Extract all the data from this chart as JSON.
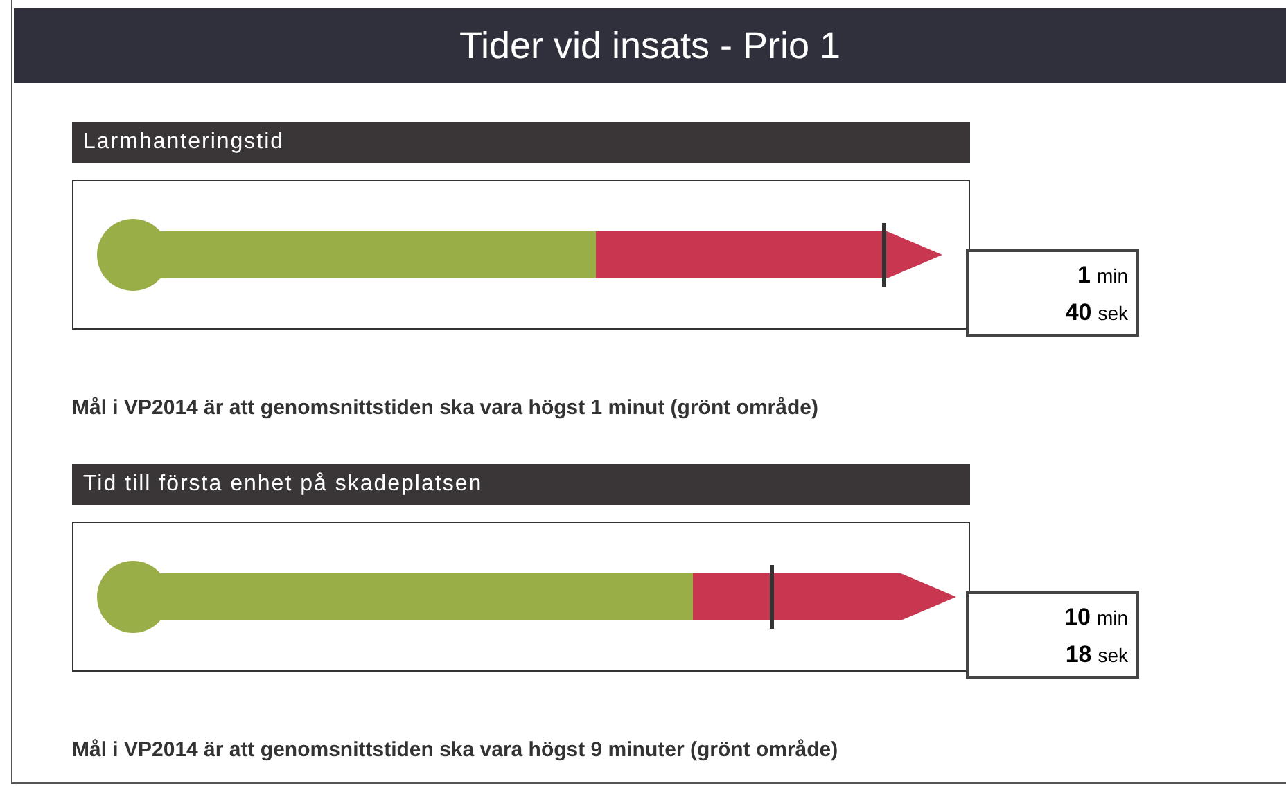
{
  "chart_data": [
    {
      "type": "other",
      "title": "Tider vid insats - Prio 1",
      "subtitle": "Larmhanteringstid",
      "categories": [
        "min",
        "sek"
      ],
      "values": [
        1,
        40
      ],
      "data_labels": true,
      "annotations": [
        "Mål i VP2014 är att genomsnittstiden ska vara högst 1 minut (grönt område)"
      ]
    },
    {
      "type": "other",
      "subtitle": "Tid till första enhet på skadeplatsen",
      "categories": [
        "min",
        "sek"
      ],
      "values": [
        10,
        18
      ],
      "data_labels": true,
      "annotations": [
        "Mål i VP2014 är att genomsnittstiden ska vara högst 9 minuter (grönt område)"
      ]
    }
  ]
}
